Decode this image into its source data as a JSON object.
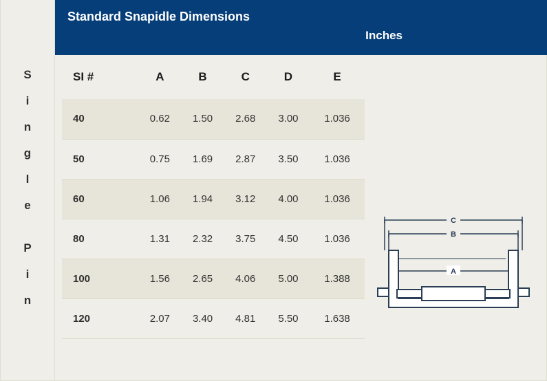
{
  "side_label_chars": [
    "S",
    "i",
    "n",
    "g",
    "l",
    "e",
    "",
    "P",
    "i",
    "n"
  ],
  "header": {
    "title": "Standard Snapidle Dimensions",
    "units": "Inches"
  },
  "table": {
    "columns": [
      "SI #",
      "A",
      "B",
      "C",
      "D",
      "E"
    ],
    "rows": [
      [
        "40",
        "0.62",
        "1.50",
        "2.68",
        "3.00",
        "1.036"
      ],
      [
        "50",
        "0.75",
        "1.69",
        "2.87",
        "3.50",
        "1.036"
      ],
      [
        "60",
        "1.06",
        "1.94",
        "3.12",
        "4.00",
        "1.036"
      ],
      [
        "80",
        "1.31",
        "2.32",
        "3.75",
        "4.50",
        "1.036"
      ],
      [
        "100",
        "1.56",
        "2.65",
        "4.06",
        "5.00",
        "1.388"
      ],
      [
        "120",
        "2.07",
        "3.40",
        "4.81",
        "5.50",
        "1.638"
      ]
    ],
    "header_bg": "#efeee9",
    "row_odd_bg": "#e7e5da",
    "row_even_bg": "#efeee9",
    "header_fontsize": 17,
    "cell_fontsize": 15,
    "text_color": "#333333"
  },
  "diagram": {
    "labels": {
      "a": "A",
      "b": "B",
      "c": "C"
    },
    "stroke": "#2a3f55",
    "fill": "#ffffff",
    "bg": "#efeee9",
    "label_fontsize": 11,
    "stroke_width": 2
  },
  "colors": {
    "header_bg": "#063e79",
    "header_text": "#ffffff",
    "panel_bg": "#efeee9",
    "border": "#e0ded4"
  }
}
